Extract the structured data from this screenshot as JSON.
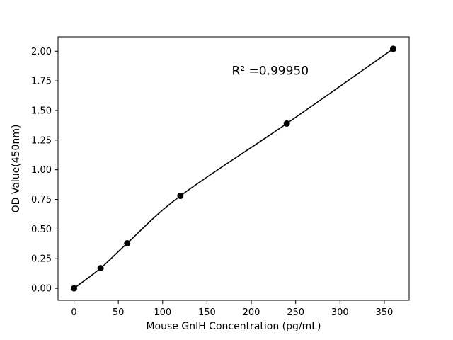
{
  "chart_data": {
    "type": "scatter",
    "title": "",
    "xlabel": "Mouse GnIH Concentration (pg/mL)",
    "ylabel": "OD Value(450nm)",
    "x": [
      0,
      30,
      60,
      120,
      240,
      360
    ],
    "y": [
      0.0,
      0.17,
      0.38,
      0.78,
      1.39,
      2.02
    ],
    "xlim": [
      -18,
      378
    ],
    "ylim": [
      -0.101,
      2.121
    ],
    "xticks": [
      0,
      50,
      100,
      150,
      200,
      250,
      300,
      350
    ],
    "xtick_labels": [
      "0",
      "50",
      "100",
      "150",
      "200",
      "250",
      "300",
      "350"
    ],
    "yticks": [
      0.0,
      0.25,
      0.5,
      0.75,
      1.0,
      1.25,
      1.5,
      1.75,
      2.0
    ],
    "ytick_labels": [
      "0.00",
      "0.25",
      "0.50",
      "0.75",
      "1.00",
      "1.25",
      "1.50",
      "1.75",
      "2.00"
    ],
    "annotation": {
      "text": "R² =0.99950",
      "x": 178,
      "y": 1.8,
      "anchor": "start"
    },
    "grid": false,
    "legend": null,
    "line_color": "#000000",
    "marker_color": "#000000",
    "background_color": "#ffffff",
    "spine_color": "#000000"
  }
}
